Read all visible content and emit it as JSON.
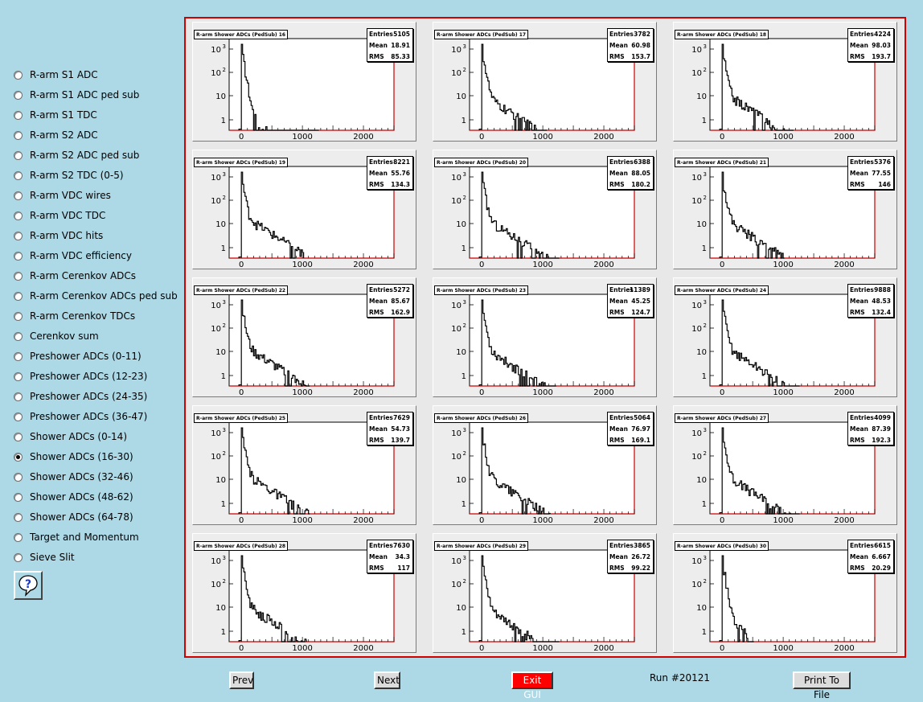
{
  "sidebar": {
    "selected_index": 19,
    "items": [
      "R-arm S1 ADC",
      "R-arm S1 ADC ped sub",
      "R-arm S1 TDC",
      "R-arm S2 ADC",
      "R-arm S2 ADC ped sub",
      "R-arm S2 TDC (0-5)",
      "R-arm VDC wires",
      "R-arm VDC TDC",
      "R-arm VDC hits",
      "R-arm VDC efficiency",
      "R-arm Cerenkov ADCs",
      "R-arm Cerenkov ADCs ped sub",
      "R-arm Cerenkov TDCs",
      "Cerenkov sum",
      "Preshower ADCs (0-11)",
      "Preshower ADCs (12-23)",
      "Preshower ADCs (24-35)",
      "Preshower ADCs (36-47)",
      "Shower ADCs (0-14)",
      "Shower ADCs (16-30)",
      "Shower ADCs (32-46)",
      "Shower ADCs (48-62)",
      "Shower ADCs (64-78)",
      "Target and Momentum",
      "Sieve Slit"
    ],
    "help_icon": "question-mark-help-icon"
  },
  "buttons": {
    "prev": "Prev",
    "next": "Next",
    "exit": "Exit GUI",
    "print": "Print To File"
  },
  "run_label": "Run #20121",
  "colors": {
    "background": "#add8e6",
    "canvas_border": "#d40000",
    "histogram_line": "#000000",
    "axis_frame_right_bottom": "#cc0000",
    "exit_button": "#ff0000"
  },
  "chart_data": [
    {
      "type": "histogram",
      "title": "R-arm Shower ADCs (PedSub) 16",
      "stats": {
        "Entries": "5105",
        "Mean": "18.91",
        "RMS": "85.33"
      },
      "x_ticks": [
        "0",
        "1000",
        "2000"
      ],
      "y_ticks": [
        "1",
        "10",
        "10^2",
        "10^3"
      ],
      "xlim": [
        -200,
        2500
      ],
      "yscale": "log",
      "tail_end": 1250,
      "tail_level": 0.05
    },
    {
      "type": "histogram",
      "title": "R-arm Shower ADCs (PedSub) 17",
      "stats": {
        "Entries": "3782",
        "Mean": "60.98",
        "RMS": "153.7"
      },
      "x_ticks": [
        "0",
        "1000",
        "2000"
      ],
      "y_ticks": [
        "1",
        "10",
        "10^2",
        "10^3"
      ],
      "xlim": [
        -200,
        2500
      ],
      "yscale": "log",
      "tail_end": 1050,
      "tail_level": 0.3
    },
    {
      "type": "histogram",
      "title": "R-arm Shower ADCs (PedSub) 18",
      "stats": {
        "Entries": "4224",
        "Mean": "98.03",
        "RMS": "193.7"
      },
      "x_ticks": [
        "0",
        "1000",
        "2000"
      ],
      "y_ticks": [
        "1",
        "10",
        "10^2",
        "10^3"
      ],
      "xlim": [
        -200,
        2500
      ],
      "yscale": "log",
      "tail_end": 1150,
      "tail_level": 0.4
    },
    {
      "type": "histogram",
      "title": "R-arm Shower ADCs (PedSub) 19",
      "stats": {
        "Entries": "8221",
        "Mean": "55.76",
        "RMS": "134.3"
      },
      "x_ticks": [
        "0",
        "1000",
        "2000"
      ],
      "y_ticks": [
        "1",
        "10",
        "10^2",
        "10^3"
      ],
      "xlim": [
        -200,
        2500
      ],
      "yscale": "log",
      "tail_end": 1000,
      "tail_level": 0.65
    },
    {
      "type": "histogram",
      "title": "R-arm Shower ADCs (PedSub) 20",
      "stats": {
        "Entries": "6388",
        "Mean": "88.05",
        "RMS": "180.2"
      },
      "x_ticks": [
        "0",
        "1000",
        "2000"
      ],
      "y_ticks": [
        "1",
        "10",
        "10^2",
        "10^3"
      ],
      "xlim": [
        -200,
        2500
      ],
      "yscale": "log",
      "tail_end": 1250,
      "tail_level": 0.55
    },
    {
      "type": "histogram",
      "title": "R-arm Shower ADCs (PedSub) 21",
      "stats": {
        "Entries": "5376",
        "Mean": "77.55",
        "RMS": "146"
      },
      "x_ticks": [
        "0",
        "1000",
        "2000"
      ],
      "y_ticks": [
        "1",
        "10",
        "10^2",
        "10^3"
      ],
      "xlim": [
        -200,
        2500
      ],
      "yscale": "log",
      "tail_end": 1000,
      "tail_level": 0.5
    },
    {
      "type": "histogram",
      "title": "R-arm Shower ADCs (PedSub) 22",
      "stats": {
        "Entries": "5272",
        "Mean": "85.67",
        "RMS": "162.9"
      },
      "x_ticks": [
        "0",
        "1000",
        "2000"
      ],
      "y_ticks": [
        "1",
        "10",
        "10^2",
        "10^3"
      ],
      "xlim": [
        -200,
        2500
      ],
      "yscale": "log",
      "tail_end": 1100,
      "tail_level": 0.55
    },
    {
      "type": "histogram",
      "title": "R-arm Shower ADCs (PedSub) 23",
      "stats": {
        "Entries": "11389",
        "Mean": "45.25",
        "RMS": "124.7"
      },
      "x_ticks": [
        "0",
        "1000",
        "2000"
      ],
      "y_ticks": [
        "1",
        "10",
        "10^2",
        "10^3"
      ],
      "xlim": [
        -200,
        2500
      ],
      "yscale": "log",
      "tail_end": 1200,
      "tail_level": 0.45
    },
    {
      "type": "histogram",
      "title": "R-arm Shower ADCs (PedSub) 24",
      "stats": {
        "Entries": "9888",
        "Mean": "48.53",
        "RMS": "132.4"
      },
      "x_ticks": [
        "0",
        "1000",
        "2000"
      ],
      "y_ticks": [
        "1",
        "10",
        "10^2",
        "10^3"
      ],
      "xlim": [
        -200,
        2500
      ],
      "yscale": "log",
      "tail_end": 1250,
      "tail_level": 0.5
    },
    {
      "type": "histogram",
      "title": "R-arm Shower ADCs (PedSub) 25",
      "stats": {
        "Entries": "7629",
        "Mean": "54.73",
        "RMS": "139.7"
      },
      "x_ticks": [
        "0",
        "1000",
        "2000"
      ],
      "y_ticks": [
        "1",
        "10",
        "10^2",
        "10^3"
      ],
      "xlim": [
        -200,
        2500
      ],
      "yscale": "log",
      "tail_end": 1100,
      "tail_level": 0.6
    },
    {
      "type": "histogram",
      "title": "R-arm Shower ADCs (PedSub) 26",
      "stats": {
        "Entries": "5064",
        "Mean": "76.97",
        "RMS": "169.1"
      },
      "x_ticks": [
        "0",
        "1000",
        "2000"
      ],
      "y_ticks": [
        "1",
        "10",
        "10^2",
        "10^3"
      ],
      "xlim": [
        -200,
        2500
      ],
      "yscale": "log",
      "tail_end": 1100,
      "tail_level": 0.55
    },
    {
      "type": "histogram",
      "title": "R-arm Shower ADCs (PedSub) 27",
      "stats": {
        "Entries": "4099",
        "Mean": "87.39",
        "RMS": "192.3"
      },
      "x_ticks": [
        "0",
        "1000",
        "2000"
      ],
      "y_ticks": [
        "1",
        "10",
        "10^2",
        "10^3"
      ],
      "xlim": [
        -200,
        2500
      ],
      "yscale": "log",
      "tail_end": 1250,
      "tail_level": 0.5
    },
    {
      "type": "histogram",
      "title": "R-arm Shower ADCs (PedSub) 28",
      "stats": {
        "Entries": "7630",
        "Mean": "34.3",
        "RMS": "117"
      },
      "x_ticks": [
        "0",
        "1000",
        "2000"
      ],
      "y_ticks": [
        "1",
        "10",
        "10^2",
        "10^3"
      ],
      "xlim": [
        -200,
        2500
      ],
      "yscale": "log",
      "tail_end": 1050,
      "tail_level": 0.45
    },
    {
      "type": "histogram",
      "title": "R-arm Shower ADCs (PedSub) 29",
      "stats": {
        "Entries": "3865",
        "Mean": "26.72",
        "RMS": "99.22"
      },
      "x_ticks": [
        "0",
        "1000",
        "2000"
      ],
      "y_ticks": [
        "1",
        "10",
        "10^2",
        "10^3"
      ],
      "xlim": [
        -200,
        2500
      ],
      "yscale": "log",
      "tail_end": 1250,
      "tail_level": 0.3
    },
    {
      "type": "histogram",
      "title": "R-arm Shower ADCs (PedSub) 30",
      "stats": {
        "Entries": "6615",
        "Mean": "6.667",
        "RMS": "20.29"
      },
      "x_ticks": [
        "0",
        "1000",
        "2000"
      ],
      "y_ticks": [
        "1",
        "10",
        "10^2",
        "10^3"
      ],
      "xlim": [
        -200,
        2500
      ],
      "yscale": "log",
      "tail_end": 500,
      "tail_level": 0.1
    }
  ]
}
